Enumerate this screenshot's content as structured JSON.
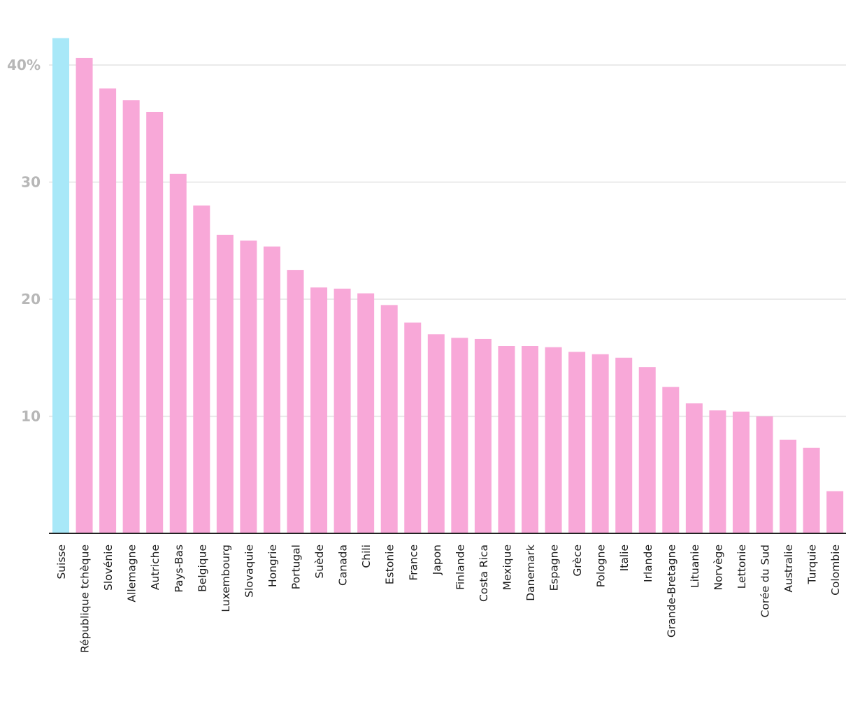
{
  "chart_data": {
    "type": "bar",
    "title": "",
    "xlabel": "",
    "ylabel": "",
    "ylim": [
      0,
      42.5
    ],
    "yticks": [
      {
        "value": 10,
        "label": "10"
      },
      {
        "value": 20,
        "label": "20"
      },
      {
        "value": 30,
        "label": "30"
      },
      {
        "value": 40,
        "label": "40%"
      }
    ],
    "grid": true,
    "highlight_color": "#a8e8f8",
    "bar_color": "#f8a8d8",
    "highlight_category": "Suisse",
    "categories": [
      "Suisse",
      "République tchèque",
      "Slovénie",
      "Allemagne",
      "Autriche",
      "Pays-Bas",
      "Belgique",
      "Luxembourg",
      "Slovaquie",
      "Hongrie",
      "Portugal",
      "Suède",
      "Canada",
      "Chili",
      "Estonie",
      "France",
      "Japon",
      "Finlande",
      "Costa Rica",
      "Mexique",
      "Danemark",
      "Espagne",
      "Grèce",
      "Pologne",
      "Italie",
      "Irlande",
      "Grande-Bretagne",
      "Lituanie",
      "Norvège",
      "Lettonie",
      "Corée du Sud",
      "Australie",
      "Turquie",
      "Colombie"
    ],
    "values": [
      42.3,
      40.6,
      38.0,
      37.0,
      36.0,
      30.7,
      28.0,
      25.5,
      25.0,
      24.5,
      22.5,
      21.0,
      20.9,
      20.5,
      19.5,
      18.0,
      17.0,
      16.7,
      16.6,
      16.0,
      16.0,
      15.9,
      15.5,
      15.3,
      15.0,
      14.2,
      12.5,
      11.1,
      10.5,
      10.4,
      10.0,
      8.0,
      7.3,
      3.6
    ]
  }
}
